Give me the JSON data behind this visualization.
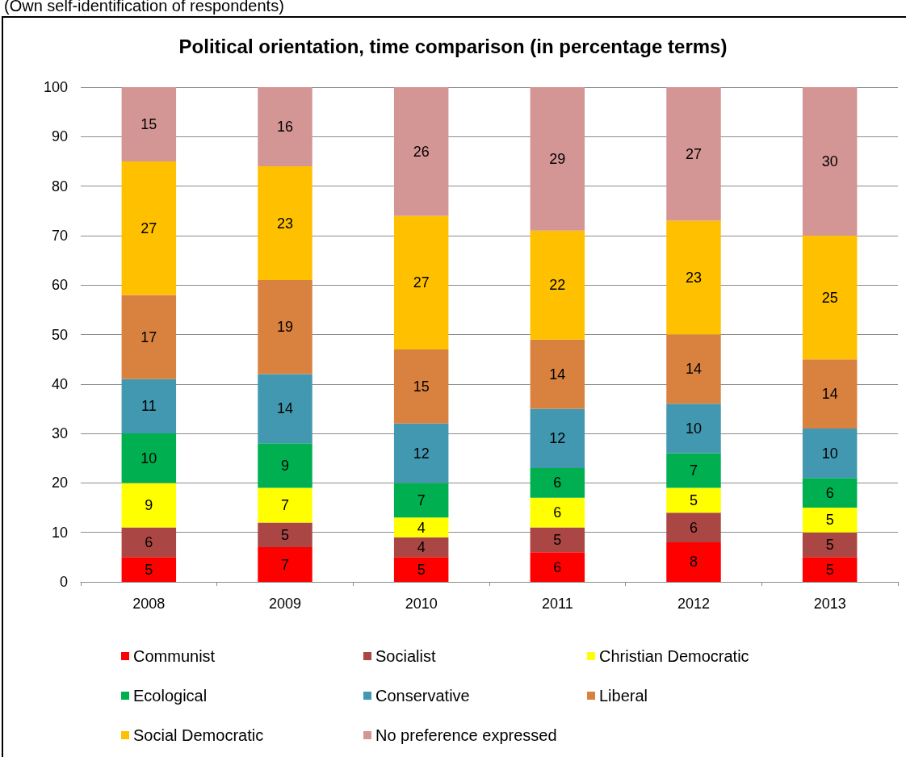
{
  "chart_data": {
    "type": "bar",
    "title": "Political orientation, time comparison (in percentage terms)",
    "subtitle": "(Own self-identification of respondents)",
    "categories": [
      "2008",
      "2009",
      "2010",
      "2011",
      "2012",
      "2013"
    ],
    "stacked": true,
    "data_labels": true,
    "grid": "y",
    "legend": "bottom",
    "ylim": [
      0,
      100
    ],
    "yticks": [
      0,
      10,
      20,
      30,
      40,
      50,
      60,
      70,
      80,
      90,
      100
    ],
    "series": [
      {
        "name": "Communist",
        "color": "#ff0000",
        "values": [
          5,
          7,
          5,
          6,
          8,
          5
        ]
      },
      {
        "name": "Socialist",
        "color": "#aa4643",
        "values": [
          6,
          5,
          4,
          5,
          6,
          5
        ]
      },
      {
        "name": "Christian Democratic",
        "color": "#ffff00",
        "values": [
          9,
          7,
          4,
          6,
          5,
          5
        ]
      },
      {
        "name": "Ecological",
        "color": "#00b050",
        "values": [
          10,
          9,
          7,
          6,
          7,
          6
        ]
      },
      {
        "name": "Conservative",
        "color": "#4198b0",
        "values": [
          11,
          14,
          12,
          12,
          10,
          10
        ]
      },
      {
        "name": "Liberal",
        "color": "#d98240",
        "values": [
          17,
          19,
          15,
          14,
          14,
          14
        ]
      },
      {
        "name": "Social Democratic",
        "color": "#ffc000",
        "values": [
          27,
          23,
          27,
          22,
          23,
          25
        ]
      },
      {
        "name": "No preference expressed",
        "color": "#d49595",
        "values": [
          15,
          16,
          26,
          29,
          27,
          30
        ]
      }
    ]
  }
}
